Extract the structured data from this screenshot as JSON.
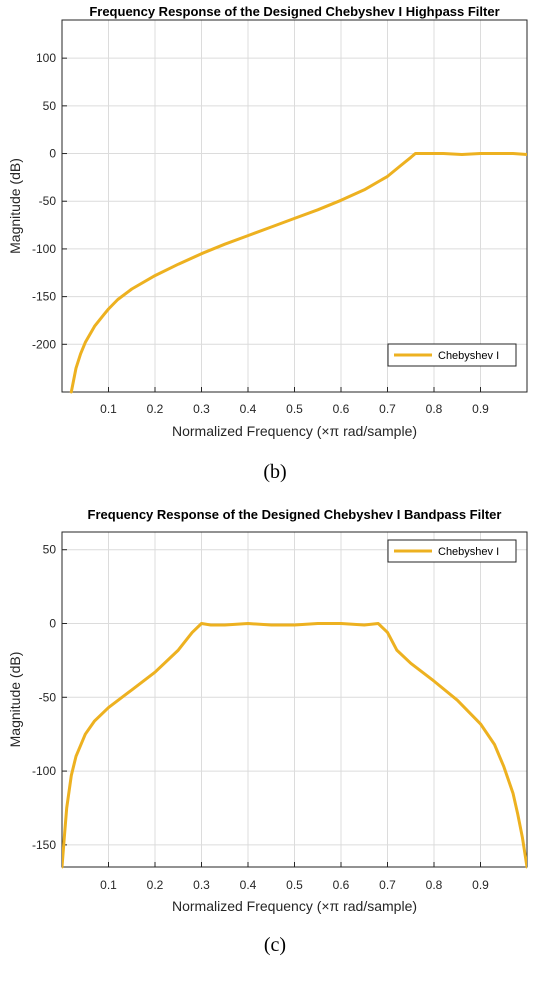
{
  "chart_data": [
    {
      "type": "line",
      "title": "Frequency Response of the Designed Chebyshev I Highpass Filter",
      "xlabel": "Normalized Frequency (×π rad/sample)",
      "ylabel": "Magnitude (dB)",
      "xlim": [
        0,
        1
      ],
      "ylim": [
        -250,
        140
      ],
      "xticks": [
        "0.1",
        "0.2",
        "0.3",
        "0.4",
        "0.5",
        "0.6",
        "0.7",
        "0.8",
        "0.9"
      ],
      "yticks": [
        "100",
        "50",
        "0",
        "-50",
        "-100",
        "-150",
        "-200"
      ],
      "grid": true,
      "legend_position": "bottom-right",
      "series": [
        {
          "name": "Chebyshev I",
          "color": "#edb120",
          "x": [
            0.02,
            0.03,
            0.04,
            0.05,
            0.07,
            0.09,
            0.1,
            0.12,
            0.15,
            0.2,
            0.25,
            0.3,
            0.35,
            0.4,
            0.45,
            0.5,
            0.55,
            0.6,
            0.65,
            0.7,
            0.73,
            0.75,
            0.76,
            0.78,
            0.82,
            0.86,
            0.9,
            0.94,
            0.97,
            1.0
          ],
          "y": [
            -250,
            -225,
            -210,
            -198,
            -181,
            -169,
            -163,
            -153,
            -142,
            -128,
            -116,
            -105,
            -95,
            -86,
            -77,
            -68,
            -59,
            -49,
            -38,
            -24,
            -12,
            -4,
            0,
            0,
            0,
            -1,
            0,
            0,
            0,
            -1
          ]
        }
      ],
      "caption": "(b)"
    },
    {
      "type": "line",
      "title": "Frequency Response of the Designed Chebyshev I Bandpass Filter",
      "xlabel": "Normalized Frequency (×π rad/sample)",
      "ylabel": "Magnitude (dB)",
      "xlim": [
        0,
        1
      ],
      "ylim": [
        -165,
        62
      ],
      "xticks": [
        "0.1",
        "0.2",
        "0.3",
        "0.4",
        "0.5",
        "0.6",
        "0.7",
        "0.8",
        "0.9"
      ],
      "yticks": [
        "50",
        "0",
        "-50",
        "-100",
        "-150"
      ],
      "grid": true,
      "legend_position": "top-right",
      "series": [
        {
          "name": "Chebyshev I",
          "color": "#edb120",
          "x": [
            0.0,
            0.005,
            0.01,
            0.02,
            0.03,
            0.05,
            0.07,
            0.1,
            0.15,
            0.2,
            0.25,
            0.28,
            0.3,
            0.32,
            0.35,
            0.4,
            0.45,
            0.5,
            0.55,
            0.6,
            0.65,
            0.68,
            0.7,
            0.72,
            0.75,
            0.8,
            0.85,
            0.9,
            0.93,
            0.95,
            0.97,
            0.98,
            0.99,
            0.995,
            1.0
          ],
          "y": [
            -165,
            -145,
            -125,
            -103,
            -90,
            -75,
            -66,
            -57,
            -45,
            -33,
            -18,
            -6,
            0,
            -1,
            -1,
            0,
            -1,
            -1,
            0,
            0,
            -1,
            0,
            -6,
            -18,
            -27,
            -39,
            -52,
            -68,
            -82,
            -97,
            -115,
            -129,
            -145,
            -155,
            -165
          ]
        }
      ],
      "caption": "(c)"
    }
  ]
}
